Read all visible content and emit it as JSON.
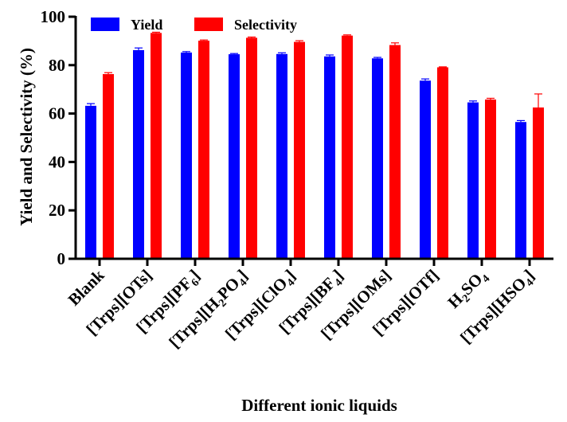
{
  "chart_data": {
    "type": "bar",
    "xlabel": "Different ionic liquids",
    "ylabel": "Yield and Selectivity (%)",
    "ylim": [
      0,
      100
    ],
    "yticks": [
      0,
      20,
      40,
      60,
      80,
      100
    ],
    "yticks_text": [
      "0",
      "20",
      "40",
      "60",
      "80",
      "100"
    ],
    "legend_position": "top-left",
    "categories": [
      "Blank",
      "[Trps][OTs]",
      "[Trps][PF6]",
      "[Trps][H2PO4]",
      "[Trps][ClO4]",
      "[Trps][BF4]",
      "[Trps][OMs]",
      "[Trps][OTf]",
      "H2SO4",
      "[Trps][HSO4]"
    ],
    "category_labels": [
      [
        {
          "t": "Blank"
        }
      ],
      [
        {
          "t": "[Trps][OTs]"
        }
      ],
      [
        {
          "t": "[Trps][PF"
        },
        {
          "t": "6",
          "sub": true
        },
        {
          "t": "]"
        }
      ],
      [
        {
          "t": "[Trps][H"
        },
        {
          "t": "2",
          "sub": true
        },
        {
          "t": "PO"
        },
        {
          "t": "4",
          "sub": true
        },
        {
          "t": "]"
        }
      ],
      [
        {
          "t": "[Trps][ClO"
        },
        {
          "t": "4",
          "sub": true
        },
        {
          "t": "]"
        }
      ],
      [
        {
          "t": "[Trps][BF"
        },
        {
          "t": "4",
          "sub": true
        },
        {
          "t": "]"
        }
      ],
      [
        {
          "t": "[Trps][OMs]"
        }
      ],
      [
        {
          "t": "[Trps][OTf]"
        }
      ],
      [
        {
          "t": "H"
        },
        {
          "t": "2",
          "sub": true
        },
        {
          "t": "SO"
        },
        {
          "t": "4",
          "sub": true
        }
      ],
      [
        {
          "t": "[Trps][HSO"
        },
        {
          "t": "4",
          "sub": true
        },
        {
          "t": "]"
        }
      ]
    ],
    "series": [
      {
        "name": "Yield",
        "color": "#0000ff",
        "values": [
          63.2,
          86.2,
          85.2,
          84.5,
          84.6,
          83.6,
          82.8,
          73.6,
          64.6,
          56.5
        ],
        "errors": [
          0.9,
          0.9,
          0.4,
          0.3,
          0.5,
          0.6,
          0.4,
          0.7,
          0.6,
          0.6
        ]
      },
      {
        "name": "Selectivity",
        "color": "#ff0000",
        "values": [
          76.3,
          93.3,
          90.1,
          91.3,
          89.6,
          92.2,
          88.3,
          79.1,
          65.8,
          62.5
        ],
        "errors": [
          0.6,
          0.3,
          0.3,
          0.3,
          0.5,
          0.3,
          0.9,
          0.2,
          0.5,
          5.6
        ]
      }
    ]
  }
}
